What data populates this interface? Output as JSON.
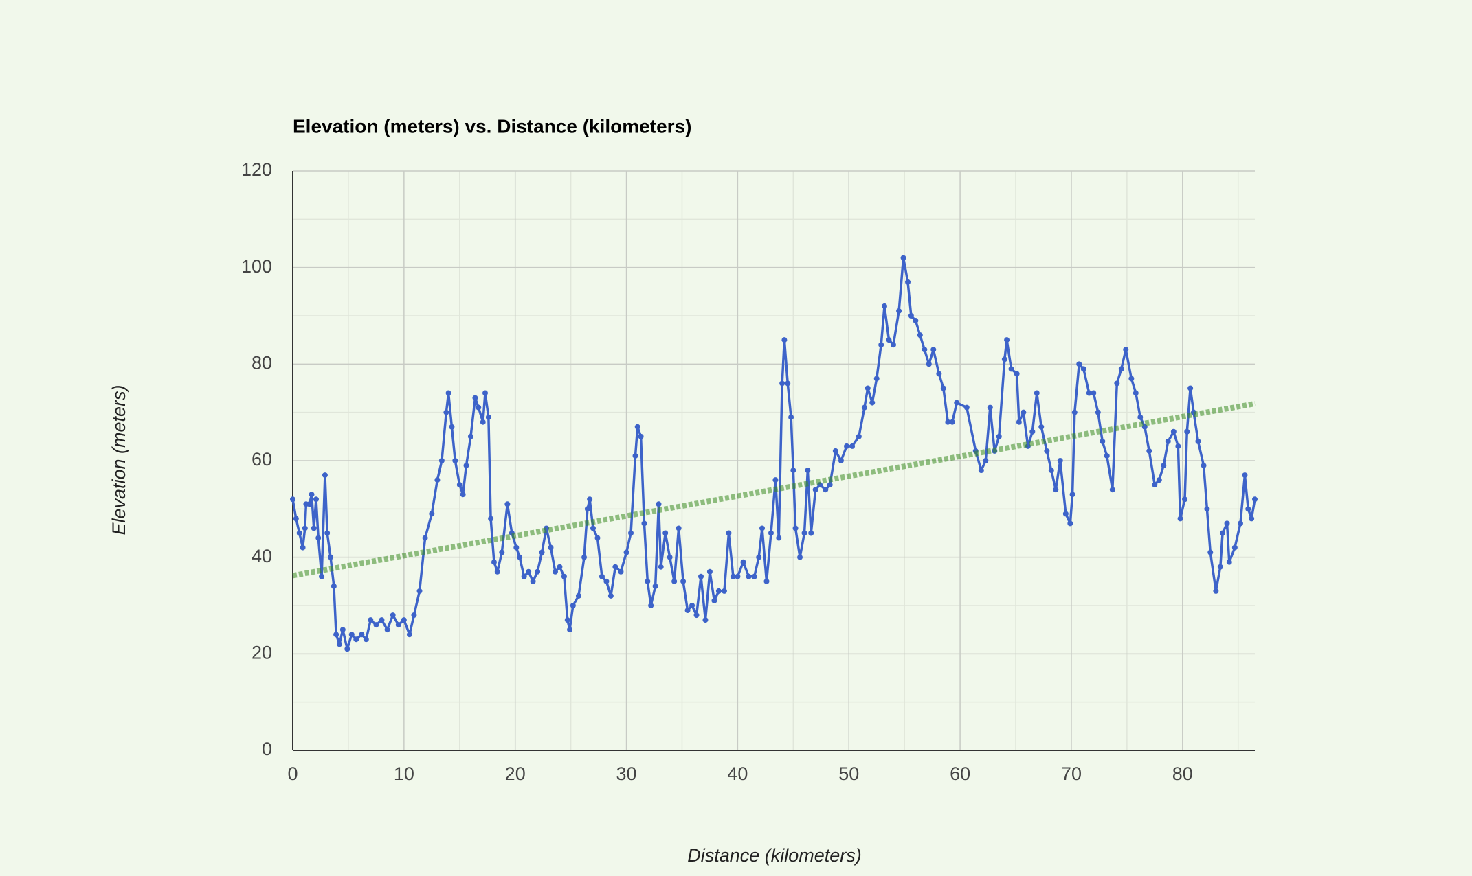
{
  "chart_data": {
    "type": "line",
    "title": "Elevation (meters) vs. Distance (kilometers)",
    "x_label": "Distance (kilometers)",
    "y_label": "Elevation (meters)",
    "xlim": [
      0,
      86.5
    ],
    "ylim": [
      0,
      120
    ],
    "xticks": [
      0,
      10,
      20,
      30,
      40,
      50,
      60,
      70,
      80
    ],
    "yticks": [
      0,
      20,
      40,
      60,
      80,
      100,
      120
    ],
    "grid": true,
    "series": [
      {
        "color": "#3d63c9",
        "markers": true,
        "x": [
          0,
          0.3,
          0.6,
          0.9,
          1.1,
          1.2,
          1.5,
          1.7,
          1.9,
          2.1,
          2.3,
          2.6,
          2.9,
          3.1,
          3.4,
          3.7,
          3.9,
          4.2,
          4.5,
          4.9,
          5.3,
          5.7,
          6.2,
          6.6,
          7.0,
          7.5,
          8.0,
          8.5,
          9.0,
          9.5,
          10.0,
          10.5,
          10.9,
          11.4,
          11.9,
          12.5,
          13.0,
          13.4,
          13.8,
          14.0,
          14.3,
          14.6,
          15.0,
          15.3,
          15.6,
          16.0,
          16.4,
          16.7,
          17.1,
          17.3,
          17.6,
          17.8,
          18.1,
          18.4,
          18.8,
          19.3,
          19.7,
          20.1,
          20.4,
          20.8,
          21.2,
          21.6,
          22.0,
          22.4,
          22.8,
          23.2,
          23.6,
          24.0,
          24.4,
          24.7,
          24.9,
          25.2,
          25.7,
          26.2,
          26.5,
          26.7,
          27.0,
          27.4,
          27.8,
          28.2,
          28.6,
          29.0,
          29.5,
          30.0,
          30.4,
          30.8,
          31.0,
          31.3,
          31.6,
          31.9,
          32.2,
          32.6,
          32.9,
          33.1,
          33.5,
          33.9,
          34.3,
          34.7,
          35.1,
          35.5,
          35.9,
          36.3,
          36.7,
          37.1,
          37.5,
          37.9,
          38.3,
          38.8,
          39.2,
          39.6,
          40.0,
          40.5,
          41.0,
          41.5,
          41.9,
          42.2,
          42.6,
          43.0,
          43.4,
          43.7,
          44.0,
          44.2,
          44.5,
          44.8,
          45.0,
          45.2,
          45.6,
          46.0,
          46.3,
          46.6,
          47.0,
          47.4,
          47.9,
          48.3,
          48.8,
          49.3,
          49.8,
          50.3,
          50.9,
          51.4,
          51.7,
          52.1,
          52.5,
          52.9,
          53.2,
          53.6,
          54.0,
          54.5,
          54.9,
          55.3,
          55.6,
          56.0,
          56.4,
          56.8,
          57.2,
          57.6,
          58.1,
          58.5,
          58.9,
          59.3,
          59.7,
          60.6,
          61.4,
          61.9,
          62.3,
          62.7,
          63.1,
          63.5,
          64.0,
          64.2,
          64.6,
          65.1,
          65.3,
          65.7,
          66.1,
          66.5,
          66.9,
          67.3,
          67.8,
          68.2,
          68.6,
          69.0,
          69.5,
          69.9,
          70.1,
          70.3,
          70.7,
          71.1,
          71.6,
          72.0,
          72.4,
          72.8,
          73.2,
          73.7,
          74.1,
          74.5,
          74.9,
          75.4,
          75.8,
          76.2,
          76.6,
          77.0,
          77.5,
          77.9,
          78.3,
          78.7,
          79.2,
          79.6,
          79.8,
          80.2,
          80.4,
          80.7,
          81.0,
          81.4,
          81.9,
          82.2,
          82.5,
          83.0,
          83.4,
          83.6,
          84.0,
          84.2,
          84.7,
          85.2,
          85.6,
          85.9,
          86.2,
          86.5
        ],
        "values": [
          52,
          48,
          45,
          42,
          46,
          51,
          51,
          53,
          46,
          52,
          44,
          36,
          57,
          45,
          40,
          34,
          24,
          22,
          25,
          21,
          24,
          23,
          24,
          23,
          27,
          26,
          27,
          25,
          28,
          26,
          27,
          24,
          28,
          33,
          44,
          49,
          56,
          60,
          70,
          74,
          67,
          60,
          55,
          53,
          59,
          65,
          73,
          71,
          68,
          74,
          69,
          48,
          39,
          37,
          41,
          51,
          45,
          42,
          40,
          36,
          37,
          35,
          37,
          41,
          46,
          42,
          37,
          38,
          36,
          27,
          25,
          30,
          32,
          40,
          50,
          52,
          46,
          44,
          36,
          35,
          32,
          38,
          37,
          41,
          45,
          61,
          67,
          65,
          47,
          35,
          30,
          34,
          51,
          38,
          45,
          40,
          35,
          46,
          35,
          29,
          30,
          28,
          36,
          27,
          37,
          31,
          33,
          33,
          45,
          36,
          36,
          39,
          36,
          36,
          40,
          46,
          35,
          45,
          56,
          44,
          76,
          85,
          76,
          69,
          58,
          46,
          40,
          45,
          58,
          45,
          54,
          55,
          54,
          55,
          62,
          60,
          63,
          63,
          65,
          71,
          75,
          72,
          77,
          84,
          92,
          85,
          84,
          91,
          102,
          97,
          90,
          89,
          86,
          83,
          80,
          83,
          78,
          75,
          68,
          68,
          72,
          71,
          62,
          58,
          60,
          71,
          62,
          65,
          81,
          85,
          79,
          78,
          68,
          70,
          63,
          66,
          74,
          67,
          62,
          58,
          54,
          60,
          49,
          47,
          53,
          70,
          80,
          79,
          74,
          74,
          70,
          64,
          61,
          54,
          76,
          79,
          83,
          77,
          74,
          69,
          67,
          62,
          55,
          56,
          59,
          64,
          66,
          63,
          48,
          52,
          66,
          75,
          70,
          64,
          59,
          50,
          41,
          33,
          38,
          45,
          47,
          39,
          42,
          47,
          57,
          50,
          48,
          52
        ]
      },
      {
        "color": "#3a8a22",
        "markers": false,
        "trendline": true,
        "x": [
          0,
          86.5
        ],
        "values": [
          36.2,
          71.8
        ]
      }
    ]
  }
}
